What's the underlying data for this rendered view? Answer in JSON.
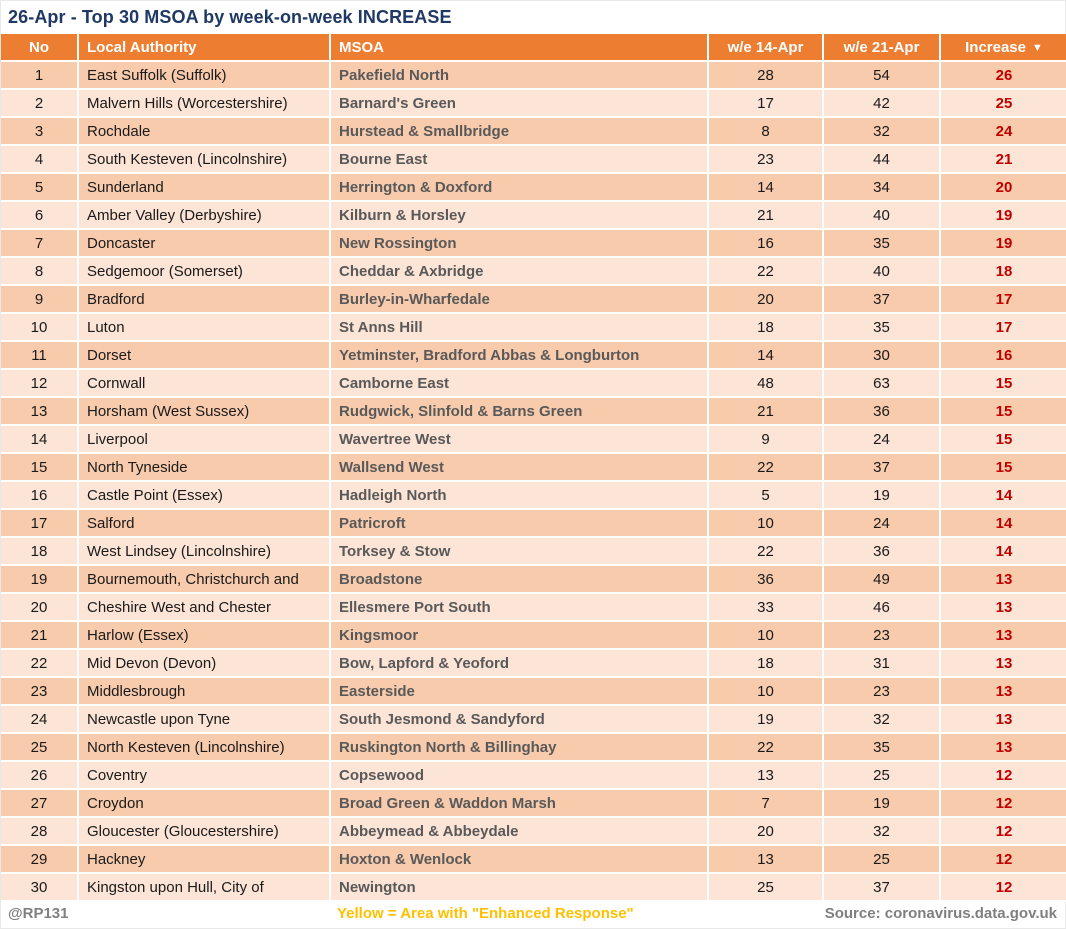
{
  "chart_data": {
    "type": "table",
    "title": "26-Apr - Top 30 MSOA by week-on-week INCREASE",
    "columns": [
      "No",
      "Local Authority",
      "MSOA",
      "w/e 14-Apr",
      "w/e 21-Apr",
      "Increase"
    ],
    "sort": {
      "column": "Increase",
      "direction": "descending",
      "icon": "▼"
    },
    "rows": [
      [
        1,
        "East Suffolk (Suffolk)",
        "Pakefield North",
        28,
        54,
        26
      ],
      [
        2,
        "Malvern Hills (Worcestershire)",
        "Barnard's Green",
        17,
        42,
        25
      ],
      [
        3,
        "Rochdale",
        "Hurstead & Smallbridge",
        8,
        32,
        24
      ],
      [
        4,
        "South Kesteven (Lincolnshire)",
        "Bourne East",
        23,
        44,
        21
      ],
      [
        5,
        "Sunderland",
        "Herrington & Doxford",
        14,
        34,
        20
      ],
      [
        6,
        "Amber Valley (Derbyshire)",
        "Kilburn & Horsley",
        21,
        40,
        19
      ],
      [
        7,
        "Doncaster",
        "New Rossington",
        16,
        35,
        19
      ],
      [
        8,
        "Sedgemoor (Somerset)",
        "Cheddar & Axbridge",
        22,
        40,
        18
      ],
      [
        9,
        "Bradford",
        "Burley-in-Wharfedale",
        20,
        37,
        17
      ],
      [
        10,
        "Luton",
        "St Anns Hill",
        18,
        35,
        17
      ],
      [
        11,
        "Dorset",
        "Yetminster, Bradford Abbas & Longburton",
        14,
        30,
        16
      ],
      [
        12,
        "Cornwall",
        "Camborne East",
        48,
        63,
        15
      ],
      [
        13,
        "Horsham (West Sussex)",
        "Rudgwick, Slinfold & Barns Green",
        21,
        36,
        15
      ],
      [
        14,
        "Liverpool",
        "Wavertree West",
        9,
        24,
        15
      ],
      [
        15,
        "North Tyneside",
        "Wallsend West",
        22,
        37,
        15
      ],
      [
        16,
        "Castle Point (Essex)",
        "Hadleigh North",
        5,
        19,
        14
      ],
      [
        17,
        "Salford",
        "Patricroft",
        10,
        24,
        14
      ],
      [
        18,
        "West Lindsey (Lincolnshire)",
        "Torksey & Stow",
        22,
        36,
        14
      ],
      [
        19,
        "Bournemouth, Christchurch and",
        "Broadstone",
        36,
        49,
        13
      ],
      [
        20,
        "Cheshire West and Chester",
        "Ellesmere Port South",
        33,
        46,
        13
      ],
      [
        21,
        "Harlow (Essex)",
        "Kingsmoor",
        10,
        23,
        13
      ],
      [
        22,
        "Mid Devon (Devon)",
        "Bow, Lapford & Yeoford",
        18,
        31,
        13
      ],
      [
        23,
        "Middlesbrough",
        "Easterside",
        10,
        23,
        13
      ],
      [
        24,
        "Newcastle upon Tyne",
        "South Jesmond & Sandyford",
        19,
        32,
        13
      ],
      [
        25,
        "North Kesteven (Lincolnshire)",
        "Ruskington North & Billinghay",
        22,
        35,
        13
      ],
      [
        26,
        "Coventry",
        "Copsewood",
        13,
        25,
        12
      ],
      [
        27,
        "Croydon",
        "Broad Green & Waddon Marsh",
        7,
        19,
        12
      ],
      [
        28,
        "Gloucester (Gloucestershire)",
        "Abbeymead & Abbeydale",
        20,
        32,
        12
      ],
      [
        29,
        "Hackney",
        "Hoxton & Wenlock",
        13,
        25,
        12
      ],
      [
        30,
        "Kingston upon Hull, City of",
        "Newington",
        25,
        37,
        12
      ]
    ]
  },
  "footer": {
    "handle": "@RP131",
    "note": "Yellow = Area with \"Enhanced Response\"",
    "source": "Source: coronavirus.data.gov.uk"
  },
  "colors": {
    "header_bg": "#ED7D31",
    "row_odd_bg": "#F8CBAD",
    "row_even_bg": "#FCE4D6",
    "title_text": "#1F3864",
    "increase_text": "#C00000",
    "msoa_text": "#595959",
    "note_text": "#FFC000",
    "footer_text": "#7F7F7F"
  }
}
